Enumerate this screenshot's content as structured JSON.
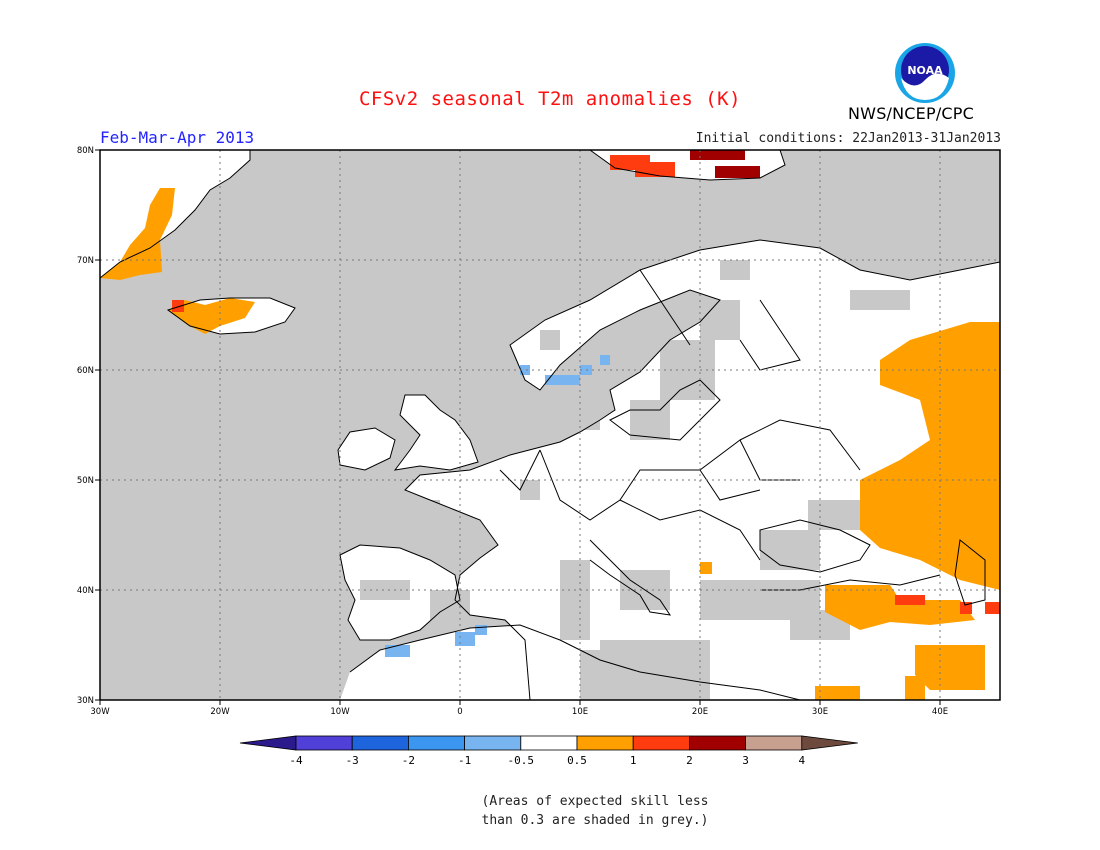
{
  "header": {
    "title": "CFSv2 seasonal T2m anomalies (K)",
    "season": "Feb-Mar-Apr 2013",
    "initial_conditions": "Initial conditions: 22Jan2013-31Jan2013",
    "agency": "NWS/NCEP/CPC",
    "logo_text": "NOAA"
  },
  "map": {
    "lat_labels": [
      "80N",
      "70N",
      "60N",
      "50N",
      "40N",
      "30N"
    ],
    "lon_labels": [
      "30W",
      "20W",
      "10W",
      "0",
      "10E",
      "20E",
      "30E",
      "40E"
    ],
    "colors": {
      "land": "#ffffff",
      "skill_mask": "#c8c8c8",
      "ocean": "#c8c8c8",
      "coast": "#000000"
    }
  },
  "legend": {
    "tick_labels": [
      "-4",
      "-3",
      "-2",
      "-1",
      "-0.5",
      "0.5",
      "1",
      "2",
      "3",
      "4"
    ],
    "colors": [
      "#2a1a8c",
      "#5040d8",
      "#1e64dc",
      "#3c96f0",
      "#78b4f0",
      "#ffffff",
      "#ffa000",
      "#ff3c10",
      "#a00000",
      "#c8a090",
      "#6e4a3e"
    ]
  },
  "note": {
    "line1": "(Areas of expected skill less",
    "line2": "than 0.3 are shaded in grey.)"
  }
}
